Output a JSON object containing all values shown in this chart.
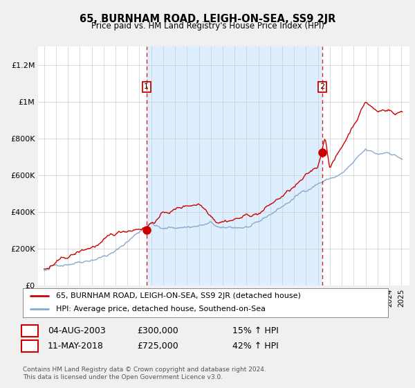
{
  "title": "65, BURNHAM ROAD, LEIGH-ON-SEA, SS9 2JR",
  "subtitle": "Price paid vs. HM Land Registry's House Price Index (HPI)",
  "legend_line1": "65, BURNHAM ROAD, LEIGH-ON-SEA, SS9 2JR (detached house)",
  "legend_line2": "HPI: Average price, detached house, Southend-on-Sea",
  "footnote": "Contains HM Land Registry data © Crown copyright and database right 2024.\nThis data is licensed under the Open Government Licence v3.0.",
  "transaction1_date": "04-AUG-2003",
  "transaction1_price": "£300,000",
  "transaction1_hpi": "15% ↑ HPI",
  "transaction2_date": "11-MAY-2018",
  "transaction2_price": "£725,000",
  "transaction2_hpi": "42% ↑ HPI",
  "vline1_x": 2003.6,
  "vline2_x": 2018.36,
  "marker1_x": 2003.6,
  "marker1_y": 300000,
  "marker2_x": 2018.36,
  "marker2_y": 725000,
  "ylim": [
    0,
    1300000
  ],
  "xlim": [
    1994.5,
    2025.7
  ],
  "line_color_red": "#cc0000",
  "line_color_blue": "#88aacc",
  "vline_color": "#cc0000",
  "shade_color": "#ddeeff",
  "background_color": "#f0f0f0",
  "plot_bg_color": "#ffffff",
  "grid_color": "#cccccc"
}
